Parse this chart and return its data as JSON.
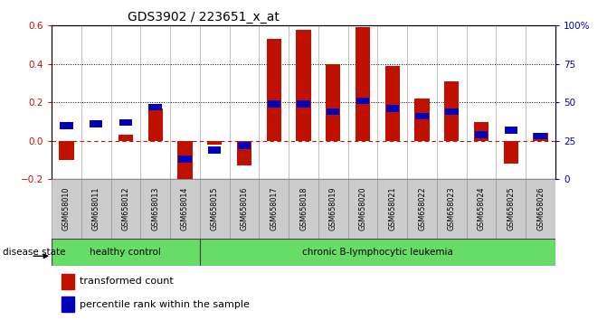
{
  "title": "GDS3902 / 223651_x_at",
  "samples": [
    "GSM658010",
    "GSM658011",
    "GSM658012",
    "GSM658013",
    "GSM658014",
    "GSM658015",
    "GSM658016",
    "GSM658017",
    "GSM658018",
    "GSM658019",
    "GSM658020",
    "GSM658021",
    "GSM658022",
    "GSM658023",
    "GSM658024",
    "GSM658025",
    "GSM658026"
  ],
  "bar_values": [
    -0.1,
    0.0,
    0.03,
    0.17,
    -0.22,
    -0.02,
    -0.13,
    0.53,
    0.58,
    0.4,
    0.59,
    0.39,
    0.22,
    0.31,
    0.1,
    -0.12,
    0.04
  ],
  "blue_pct": [
    35,
    36,
    37,
    47,
    13,
    19,
    22,
    49,
    49,
    44,
    51,
    46,
    41,
    44,
    29,
    32,
    28
  ],
  "bar_color": "#C01000",
  "blue_color": "#0000BB",
  "zero_line_color": "#C01000",
  "background_color": "#FFFFFF",
  "plot_bg_color": "#FFFFFF",
  "healthy_color": "#66DD66",
  "leukemia_color": "#66DD66",
  "healthy_label": "healthy control",
  "leukemia_label": "chronic B-lymphocytic leukemia",
  "disease_state_label": "disease state",
  "legend_bar_label": "transformed count",
  "legend_blue_label": "percentile rank within the sample",
  "ylim_left": [
    -0.2,
    0.6
  ],
  "ylim_right": [
    0,
    100
  ],
  "yticks_left": [
    -0.2,
    0.0,
    0.2,
    0.4,
    0.6
  ],
  "yticks_right": [
    0,
    25,
    50,
    75,
    100
  ],
  "ytick_right_labels": [
    "0",
    "25",
    "50",
    "75",
    "100%"
  ],
  "healthy_count": 5,
  "total_count": 17,
  "bar_color_left": "#CC0000",
  "separator_color": "#AAAAAA",
  "label_box_color": "#CCCCCC"
}
